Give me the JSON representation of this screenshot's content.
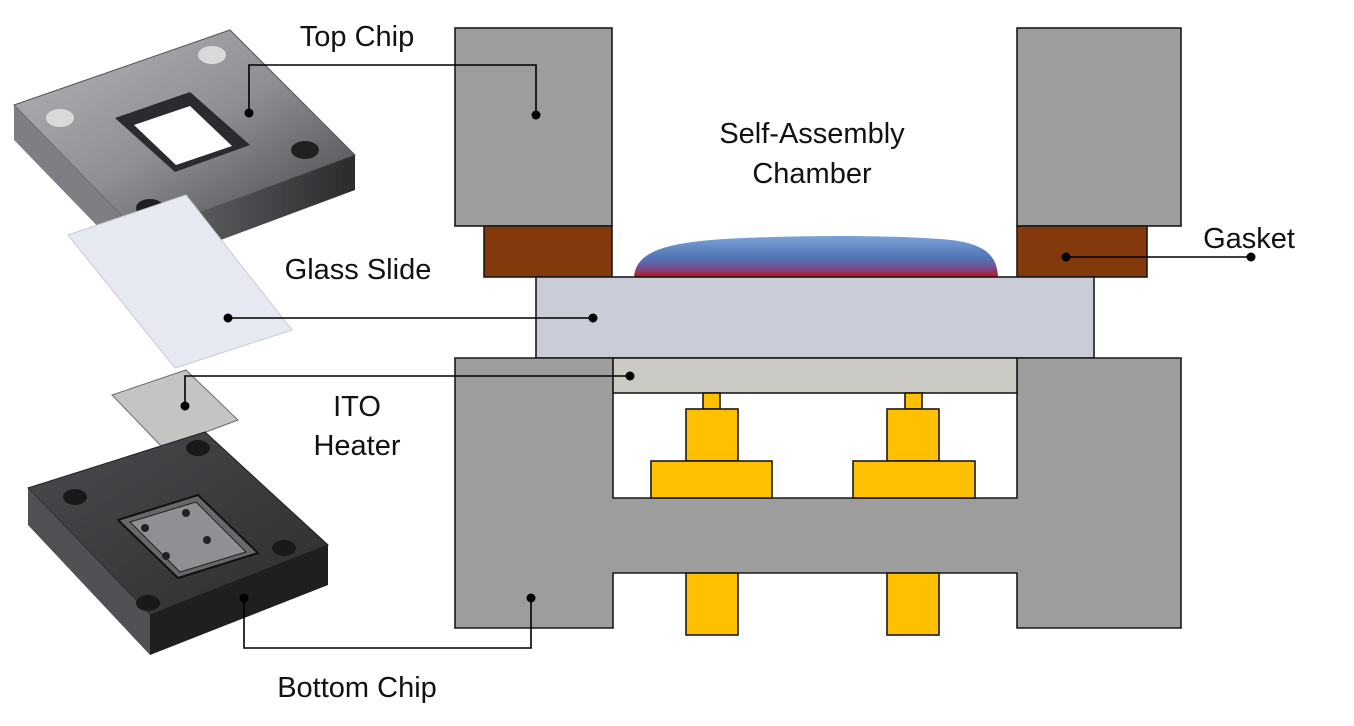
{
  "labels": {
    "top_chip": "Top Chip",
    "chamber_line1": "Self-Assembly",
    "chamber_line2": "Chamber",
    "gasket": "Gasket",
    "glass_slide": "Glass Slide",
    "ito_line1": "ITO",
    "ito_line2": "Heater",
    "bottom_chip": "Bottom Chip"
  },
  "colors": {
    "chip_gray": "#9c9d9c",
    "gasket_brown": "#83390c",
    "glass": "#cacdd8",
    "ito": "#cbcac4",
    "electrode": "#ffc000",
    "droplet_top": "#7aa3d8",
    "droplet_mid": "#4a6fb0",
    "droplet_bottom": "#c01010"
  }
}
